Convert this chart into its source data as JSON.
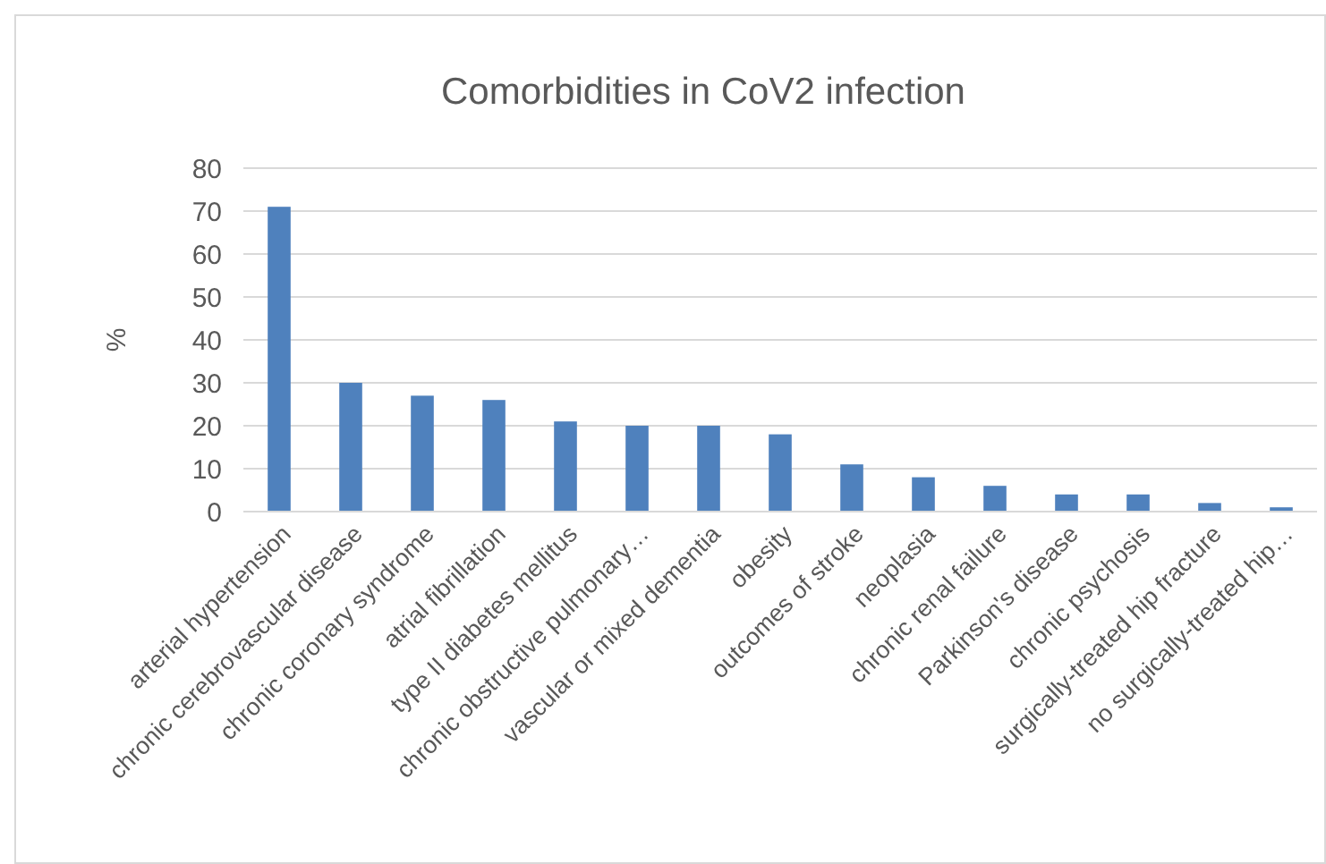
{
  "chart_data": {
    "type": "bar",
    "title": "Comorbidities in CoV2 infection",
    "ylabel": "%",
    "categories": [
      "arterial hypertension",
      "chronic cerebrovascular disease",
      "chronic coronary syndrome",
      "atrial fibrillation",
      "type II diabetes mellitus",
      "chronic obstructive pulmonary…",
      "vascular or mixed dementia",
      "obesity",
      "outcomes of stroke",
      "neoplasia",
      "chronic renal failure",
      "Parkinson's disease",
      "chronic psychosis",
      "surgically-treated hip fracture",
      "no surgically-treated hip…"
    ],
    "values": [
      71,
      30,
      27,
      26,
      21,
      20,
      20,
      18,
      11,
      8,
      6,
      4,
      4,
      2,
      1
    ],
    "color": "#4f81bd",
    "ylim": [
      0,
      80
    ],
    "yticks": [
      0,
      10,
      20,
      30,
      40,
      50,
      60,
      70,
      80
    ],
    "grid": "y"
  }
}
